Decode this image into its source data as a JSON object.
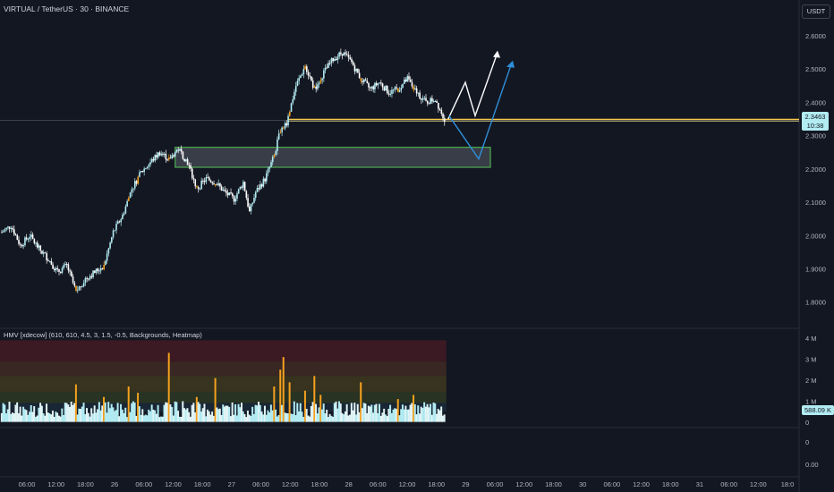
{
  "header": {
    "symbol_title": "VIRTUAL / TetherUS · 30 · BINANCE",
    "currency_button": "USDT"
  },
  "indicator": {
    "label": "HMV [xdecow] (610, 610, 4.5, 3, 1.5, -0.5, Backgrounds, Heatmap)"
  },
  "price_tag": {
    "price": "2.3463",
    "countdown": "10:38"
  },
  "volume_tag": {
    "value": "588.09 K"
  },
  "colors": {
    "background": "#131722",
    "up": "#b2ebf2",
    "down": "#ffffff",
    "accent": "#f5a11d",
    "price_line": "#f7c948",
    "zone": "#4caf50",
    "arrow_white": "#ffffff",
    "arrow_blue": "#2f8fd8"
  },
  "chart_data": [
    {
      "type": "candlestick",
      "title": "VIRTUAL / TetherUS · 30 · BINANCE",
      "y_axis_ticks": [
        "2.6000",
        "2.5000",
        "2.4000",
        "2.3000",
        "2.2000",
        "2.1000",
        "2.0000",
        "1.9000",
        "1.8000"
      ],
      "ylim": [
        1.74,
        2.67
      ],
      "x_axis_ticks": [
        "06:00",
        "12:00",
        "18:00",
        "26",
        "06:00",
        "12:00",
        "18:00",
        "27",
        "06:00",
        "12:00",
        "18:00",
        "28",
        "06:00",
        "12:00",
        "18:00",
        "29",
        "06:00",
        "12:00",
        "18:00",
        "30",
        "06:00",
        "12:00",
        "18:00",
        "31",
        "06:00",
        "12:00",
        "18:0"
      ],
      "current_price": 2.3463,
      "demand_zone": {
        "price_low": 2.205,
        "price_high": 2.265
      },
      "price_path": [
        [
          0,
          2.01
        ],
        [
          6,
          2.03
        ],
        [
          12,
          1.97
        ],
        [
          18,
          2.0
        ],
        [
          24,
          1.96
        ],
        [
          30,
          1.93
        ],
        [
          36,
          1.89
        ],
        [
          42,
          1.91
        ],
        [
          48,
          1.83
        ],
        [
          54,
          1.87
        ],
        [
          60,
          1.89
        ],
        [
          66,
          1.91
        ],
        [
          72,
          2.01
        ],
        [
          78,
          2.06
        ],
        [
          84,
          2.14
        ],
        [
          90,
          2.19
        ],
        [
          96,
          2.22
        ],
        [
          102,
          2.25
        ],
        [
          108,
          2.23
        ],
        [
          114,
          2.26
        ],
        [
          120,
          2.22
        ],
        [
          126,
          2.14
        ],
        [
          132,
          2.17
        ],
        [
          138,
          2.16
        ],
        [
          144,
          2.13
        ],
        [
          150,
          2.11
        ],
        [
          156,
          2.16
        ],
        [
          160,
          2.07
        ],
        [
          164,
          2.13
        ],
        [
          170,
          2.17
        ],
        [
          176,
          2.24
        ],
        [
          180,
          2.32
        ],
        [
          184,
          2.34
        ],
        [
          190,
          2.45
        ],
        [
          196,
          2.51
        ],
        [
          202,
          2.44
        ],
        [
          208,
          2.49
        ],
        [
          214,
          2.53
        ],
        [
          220,
          2.55
        ],
        [
          226,
          2.52
        ],
        [
          232,
          2.47
        ],
        [
          238,
          2.44
        ],
        [
          244,
          2.46
        ],
        [
          250,
          2.43
        ],
        [
          256,
          2.44
        ],
        [
          262,
          2.47
        ],
        [
          268,
          2.43
        ],
        [
          274,
          2.4
        ],
        [
          280,
          2.41
        ],
        [
          286,
          2.35
        ]
      ],
      "projection_white": [
        2.35,
        2.46,
        2.36,
        2.55
      ],
      "projection_blue": [
        2.36,
        2.23,
        2.52
      ]
    },
    {
      "type": "bar",
      "title": "HMV [xdecow] (610, 610, 4.5, 3, 1.5, -0.5, Backgrounds, Heatmap)",
      "y_axis_ticks": [
        "4 M",
        "3 M",
        "2 M",
        "1 M",
        "0"
      ],
      "ylim": [
        0,
        4
      ],
      "last_value": "588.09 K",
      "heat_bands": [
        "#5c1e24",
        "#5a3524",
        "#554a1e",
        "#3c4a24",
        "#1e3346"
      ],
      "spike_volumes": [
        [
          18,
          0.5
        ],
        [
          48,
          1.8
        ],
        [
          66,
          1.2
        ],
        [
          82,
          1.7
        ],
        [
          88,
          1.4
        ],
        [
          108,
          3.3
        ],
        [
          126,
          1.2
        ],
        [
          138,
          2.1
        ],
        [
          176,
          1.7
        ],
        [
          180,
          2.5
        ],
        [
          182,
          3.1
        ],
        [
          186,
          1.9
        ],
        [
          196,
          1.5
        ],
        [
          202,
          2.2
        ],
        [
          206,
          1.3
        ],
        [
          232,
          1.9
        ],
        [
          256,
          1.1
        ],
        [
          266,
          1.3
        ]
      ]
    },
    {
      "type": "line",
      "title": "",
      "y_axis_ticks": [
        "0",
        "0.00"
      ],
      "series": []
    }
  ]
}
